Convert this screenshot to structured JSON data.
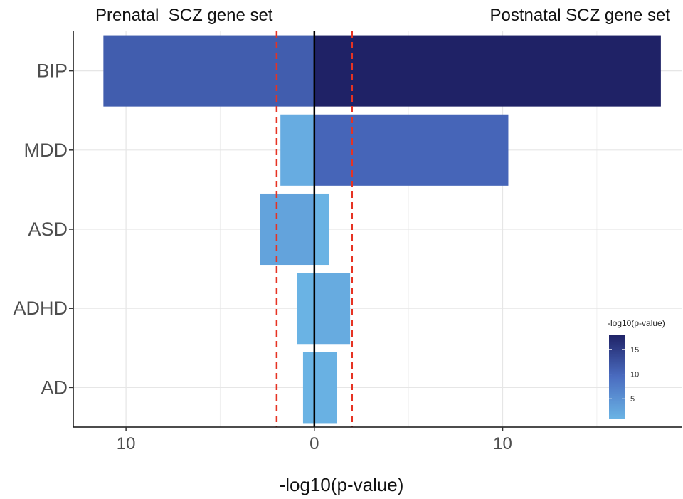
{
  "chart_data": {
    "type": "bar",
    "orientation": "horizontal-diverging",
    "left_header": "Prenatal  SCZ gene set",
    "right_header": "Postnatal SCZ gene set",
    "xlabel": "-log10(p-value)",
    "categories": [
      "BIP",
      "MDD",
      "ASD",
      "ADHD",
      "AD"
    ],
    "series": [
      {
        "name": "Prenatal SCZ gene set",
        "values": [
          11.2,
          1.8,
          2.9,
          0.9,
          0.6
        ]
      },
      {
        "name": "Postnatal SCZ gene set",
        "values": [
          18.4,
          10.3,
          0.8,
          1.9,
          1.2
        ]
      }
    ],
    "xlim": [
      -12.8,
      19.5
    ],
    "xticks": [
      -10,
      0,
      10
    ],
    "xtick_labels": [
      "10",
      "0",
      "10"
    ],
    "threshold_lines": [
      -2,
      2
    ],
    "threshold_color": "#e63323",
    "legend": {
      "title": "-log10(p-value)",
      "position": "bottom-right",
      "ticks": [
        5,
        10,
        15
      ],
      "range": [
        1,
        18
      ],
      "colors": [
        "#6ab3e4",
        "#4a6cc0",
        "#1f2266"
      ]
    },
    "grid": true
  }
}
